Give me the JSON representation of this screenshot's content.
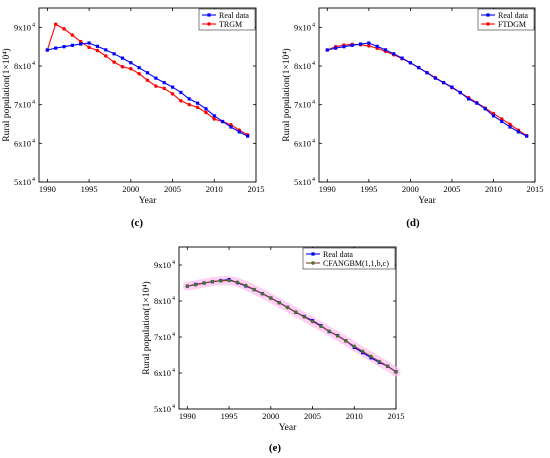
{
  "charts": [
    {
      "panel_label": "(c)",
      "legend": [
        "Real data",
        "TRGM"
      ],
      "colors": [
        "#0000ff",
        "#ff0000"
      ],
      "markers": [
        "square",
        "circle"
      ],
      "marker_fill": [
        "#0000ff",
        "#ff0000"
      ],
      "model_band": false,
      "xlabel": "Year",
      "ylabel": "Rural population(1×10⁴)",
      "xlim": [
        1989,
        2015
      ],
      "xticks": [
        1990,
        1995,
        2000,
        2005,
        2010,
        2015
      ],
      "ylim": [
        50000,
        95000
      ],
      "yticks": [
        {
          "value": 50000,
          "label": "5x10"
        },
        {
          "value": 60000,
          "label": "6x10"
        },
        {
          "value": 70000,
          "label": "7x10"
        },
        {
          "value": 80000,
          "label": "8x10"
        },
        {
          "value": 90000,
          "label": "9x10"
        }
      ],
      "ytick_exp": "4",
      "years": [
        1990,
        1991,
        1992,
        1993,
        1994,
        1995,
        1996,
        1997,
        1998,
        1999,
        2000,
        2001,
        2002,
        2003,
        2004,
        2005,
        2006,
        2007,
        2008,
        2009,
        2010,
        2011,
        2012,
        2013,
        2014
      ],
      "real": [
        84138,
        84620,
        84996,
        85344,
        85681,
        85947,
        85085,
        84177,
        83153,
        82038,
        80837,
        79563,
        78241,
        76851,
        75705,
        74544,
        73160,
        71496,
        70399,
        68938,
        67113,
        65656,
        64222,
        62961,
        61866
      ],
      "model": [
        84138,
        90800,
        89600,
        88000,
        86300,
        84800,
        84000,
        82600,
        81000,
        79800,
        79300,
        78000,
        76300,
        74800,
        74200,
        72800,
        71000,
        70000,
        69300,
        68000,
        66300,
        65600,
        64800,
        63400,
        62200
      ]
    },
    {
      "panel_label": "(d)",
      "legend": [
        "Real data",
        "FTDGM"
      ],
      "colors": [
        "#0000ff",
        "#ff0000"
      ],
      "markers": [
        "square",
        "circle"
      ],
      "marker_fill": [
        "#0000ff",
        "#ff0000"
      ],
      "model_band": false,
      "xlabel": "Year",
      "ylabel": "Rural population(1×10⁴)",
      "xlim": [
        1989,
        2015
      ],
      "xticks": [
        1990,
        1995,
        2000,
        2005,
        2010,
        2015
      ],
      "ylim": [
        50000,
        95000
      ],
      "yticks": [
        {
          "value": 50000,
          "label": "5x10"
        },
        {
          "value": 60000,
          "label": "6x10"
        },
        {
          "value": 70000,
          "label": "7x10"
        },
        {
          "value": 80000,
          "label": "8x10"
        },
        {
          "value": 90000,
          "label": "9x10"
        }
      ],
      "ytick_exp": "4",
      "years": [
        1990,
        1991,
        1992,
        1993,
        1994,
        1995,
        1996,
        1997,
        1998,
        1999,
        2000,
        2001,
        2002,
        2003,
        2004,
        2005,
        2006,
        2007,
        2008,
        2009,
        2010,
        2011,
        2012,
        2013,
        2014
      ],
      "real": [
        84138,
        84620,
        84996,
        85344,
        85681,
        85947,
        85085,
        84177,
        83153,
        82038,
        80837,
        79563,
        78241,
        76851,
        75705,
        74544,
        73160,
        71496,
        70399,
        68938,
        67113,
        65656,
        64222,
        62961,
        61866
      ],
      "model": [
        84138,
        85000,
        85400,
        85600,
        85500,
        85200,
        84600,
        83800,
        82900,
        81900,
        80800,
        79600,
        78300,
        77000,
        75700,
        74400,
        73100,
        71800,
        70500,
        69100,
        67700,
        66300,
        64900,
        63400,
        62000
      ]
    },
    {
      "panel_label": "(e)",
      "legend": [
        "Real data",
        "CFANGBM(1,1,b,c)"
      ],
      "colors": [
        "#0000ff",
        "#8b3a3a"
      ],
      "markers": [
        "square",
        "circle"
      ],
      "marker_fill": [
        "#0000ff",
        "#228b22"
      ],
      "model_band": true,
      "xlabel": "Year",
      "ylabel": "Rural population(1×10⁴)",
      "xlim": [
        1989,
        2015
      ],
      "xticks": [
        1990,
        1995,
        2000,
        2005,
        2010,
        2015
      ],
      "ylim": [
        50000,
        95000
      ],
      "yticks": [
        {
          "value": 50000,
          "label": "5x10"
        },
        {
          "value": 60000,
          "label": "6x10"
        },
        {
          "value": 70000,
          "label": "7x10"
        },
        {
          "value": 80000,
          "label": "8x10"
        },
        {
          "value": 90000,
          "label": "9x10"
        }
      ],
      "ytick_exp": "4",
      "years": [
        1990,
        1991,
        1992,
        1993,
        1994,
        1995,
        1996,
        1997,
        1998,
        1999,
        2000,
        2001,
        2002,
        2003,
        2004,
        2005,
        2006,
        2007,
        2008,
        2009,
        2010,
        2011,
        2012,
        2013,
        2014,
        2015
      ],
      "real": [
        84138,
        84620,
        84996,
        85344,
        85681,
        85947,
        85085,
        84177,
        83153,
        82038,
        80837,
        79563,
        78241,
        76851,
        75705,
        74544,
        73160,
        71496,
        70399,
        68938,
        67113,
        65656,
        64222,
        62961,
        61866,
        60346
      ],
      "model": [
        84138,
        84500,
        85000,
        85400,
        85600,
        85700,
        85200,
        84300,
        83200,
        82000,
        80800,
        79500,
        78200,
        76900,
        75600,
        74300,
        73000,
        71600,
        70300,
        68900,
        67400,
        66000,
        64600,
        63200,
        61900,
        60300
      ]
    }
  ]
}
